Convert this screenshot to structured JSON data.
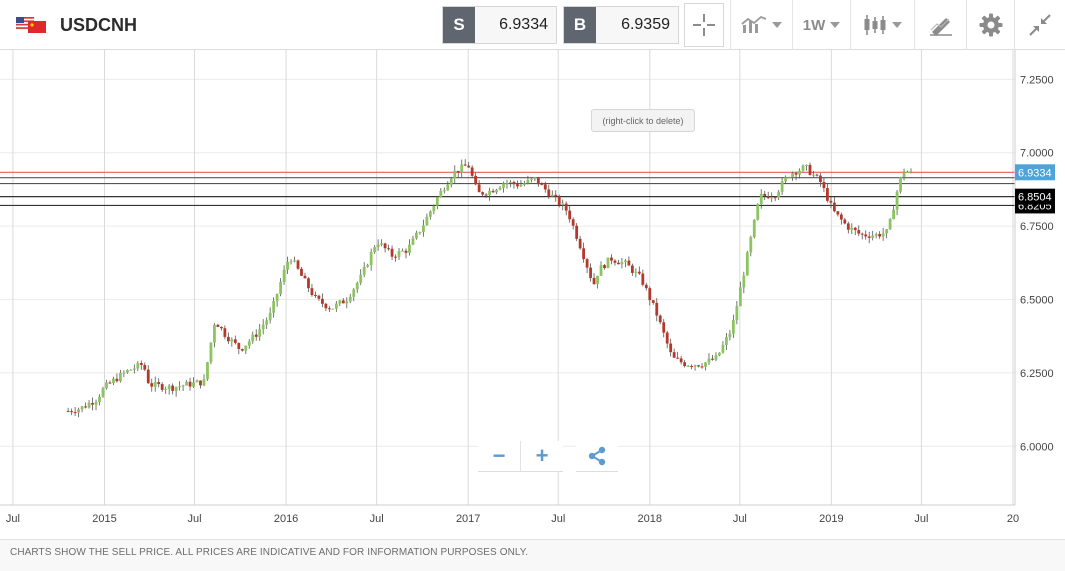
{
  "header": {
    "symbol": "USDCNH",
    "sell": {
      "label": "S",
      "value": "6.9334"
    },
    "buy": {
      "label": "B",
      "value": "6.9359"
    },
    "timeframe": "1W"
  },
  "hint": "(right-click to delete)",
  "footer": {
    "disclaimer": "CHARTS SHOW THE SELL PRICE. ALL PRICES ARE INDICATIVE AND FOR INFORMATION PURPOSES ONLY."
  },
  "zoom": {
    "minus": "−",
    "plus": "+"
  },
  "colors": {
    "up": "#8cc460",
    "down": "#b6382a",
    "accent_line": "#e85b5b",
    "price_badge": "#4ea3d8",
    "level_badge": "#000000"
  },
  "chart_data": {
    "type": "candlestick",
    "yticks": [
      {
        "value": 7.25,
        "label": "7.2500"
      },
      {
        "value": 7.0,
        "label": "7.0000"
      },
      {
        "value": 6.75,
        "label": "6.7500"
      },
      {
        "value": 6.5,
        "label": "6.5000"
      },
      {
        "value": 6.25,
        "label": "6.2500"
      },
      {
        "value": 6.0,
        "label": "6.0000"
      }
    ],
    "ylim": [
      5.8,
      7.35
    ],
    "xlim": [
      "2014-06-01",
      "2020-01-01"
    ],
    "xticks": [
      {
        "date": "2014-07-01",
        "label": "Jul"
      },
      {
        "date": "2015-01-01",
        "label": "2015"
      },
      {
        "date": "2015-07-01",
        "label": "Jul"
      },
      {
        "date": "2016-01-01",
        "label": "2016"
      },
      {
        "date": "2016-07-01",
        "label": "Jul"
      },
      {
        "date": "2017-01-01",
        "label": "2017"
      },
      {
        "date": "2017-07-01",
        "label": "Jul"
      },
      {
        "date": "2018-01-01",
        "label": "2018"
      },
      {
        "date": "2018-07-01",
        "label": "Jul"
      },
      {
        "date": "2019-01-01",
        "label": "2019"
      },
      {
        "date": "2019-07-01",
        "label": "Jul"
      },
      {
        "date": "2020-01-01",
        "label": "20"
      }
    ],
    "horizontal_lines": [
      {
        "value": 6.9334,
        "color": "#e85b5b",
        "badge": "6.9334"
      },
      {
        "value": 6.915,
        "color": "#555555"
      },
      {
        "value": 6.895,
        "color": "#555555"
      },
      {
        "value": 6.8504,
        "color": "#333333",
        "badge": "6.8504"
      },
      {
        "value": 6.8205,
        "color": "#333333",
        "badge": "6.8205"
      }
    ],
    "path": [
      [
        "2014-10-20",
        6.12
      ],
      [
        "2014-11-15",
        6.13
      ],
      [
        "2014-12-15",
        6.16
      ],
      [
        "2015-01-01",
        6.2
      ],
      [
        "2015-02-01",
        6.24
      ],
      [
        "2015-02-20",
        6.26
      ],
      [
        "2015-03-20",
        6.28
      ],
      [
        "2015-04-01",
        6.21
      ],
      [
        "2015-05-15",
        6.2
      ],
      [
        "2015-06-15",
        6.21
      ],
      [
        "2015-07-20",
        6.22
      ],
      [
        "2015-08-11",
        6.43
      ],
      [
        "2015-09-01",
        6.38
      ],
      [
        "2015-10-01",
        6.33
      ],
      [
        "2015-11-01",
        6.38
      ],
      [
        "2015-12-01",
        6.45
      ],
      [
        "2015-12-25",
        6.58
      ],
      [
        "2016-01-08",
        6.65
      ],
      [
        "2016-02-01",
        6.58
      ],
      [
        "2016-03-01",
        6.5
      ],
      [
        "2016-04-01",
        6.47
      ],
      [
        "2016-05-01",
        6.5
      ],
      [
        "2016-06-01",
        6.58
      ],
      [
        "2016-07-01",
        6.7
      ],
      [
        "2016-08-01",
        6.65
      ],
      [
        "2016-09-01",
        6.67
      ],
      [
        "2016-10-01",
        6.75
      ],
      [
        "2016-11-01",
        6.85
      ],
      [
        "2016-12-01",
        6.93
      ],
      [
        "2017-01-01",
        6.96
      ],
      [
        "2017-01-20",
        6.86
      ],
      [
        "2017-02-15",
        6.87
      ],
      [
        "2017-03-15",
        6.9
      ],
      [
        "2017-04-15",
        6.89
      ],
      [
        "2017-05-15",
        6.91
      ],
      [
        "2017-06-20",
        6.85
      ],
      [
        "2017-07-20",
        6.8
      ],
      [
        "2017-08-15",
        6.68
      ],
      [
        "2017-09-10",
        6.55
      ],
      [
        "2017-09-20",
        6.6
      ],
      [
        "2017-10-15",
        6.64
      ],
      [
        "2017-11-15",
        6.62
      ],
      [
        "2017-12-15",
        6.57
      ],
      [
        "2018-01-15",
        6.45
      ],
      [
        "2018-02-15",
        6.3
      ],
      [
        "2018-03-15",
        6.28
      ],
      [
        "2018-04-15",
        6.28
      ],
      [
        "2018-05-15",
        6.3
      ],
      [
        "2018-06-15",
        6.4
      ],
      [
        "2018-07-10",
        6.6
      ],
      [
        "2018-08-10",
        6.85
      ],
      [
        "2018-09-10",
        6.86
      ],
      [
        "2018-10-10",
        6.93
      ],
      [
        "2018-11-10",
        6.95
      ],
      [
        "2018-12-10",
        6.9
      ],
      [
        "2019-01-05",
        6.8
      ],
      [
        "2019-02-01",
        6.75
      ],
      [
        "2019-03-01",
        6.72
      ],
      [
        "2019-04-01",
        6.72
      ],
      [
        "2019-04-25",
        6.73
      ],
      [
        "2019-05-10",
        6.85
      ],
      [
        "2019-05-25",
        6.94
      ],
      [
        "2019-06-10",
        6.93
      ]
    ]
  }
}
